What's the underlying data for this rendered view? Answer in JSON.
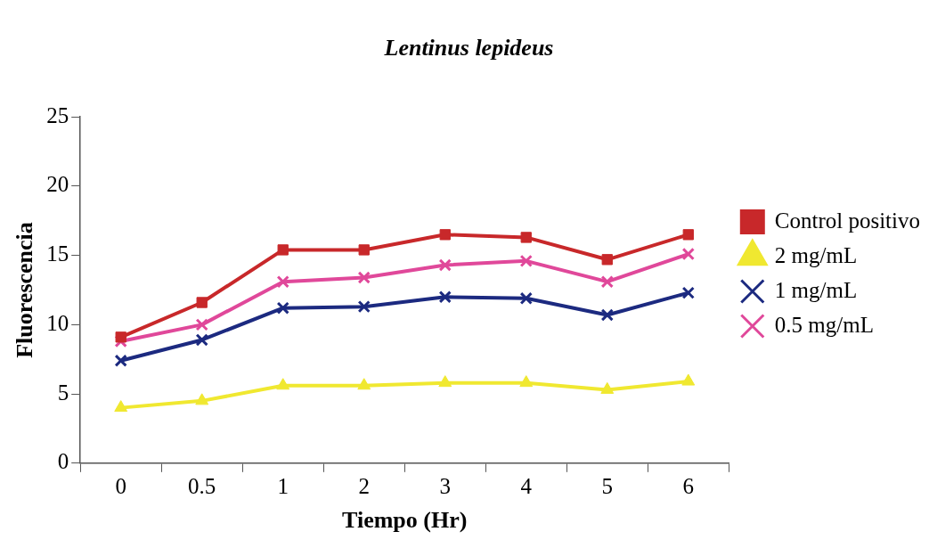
{
  "chart_data": {
    "type": "line",
    "title": "Lentinus lepideus",
    "xlabel": "Tiempo (Hr)",
    "ylabel": "Fluorescencia",
    "categories": [
      "0",
      "0.5",
      "1",
      "2",
      "3",
      "4",
      "5",
      "6"
    ],
    "series": [
      {
        "name": "Control positivo",
        "color": "#c8282a",
        "marker": "square",
        "values": [
          9.1,
          11.6,
          15.4,
          15.4,
          16.5,
          16.3,
          14.7,
          16.5
        ]
      },
      {
        "name": "2 mg/mL",
        "color": "#f0e830",
        "marker": "triangle",
        "values": [
          4.0,
          4.5,
          5.6,
          5.6,
          5.8,
          5.8,
          5.3,
          5.9
        ]
      },
      {
        "name": "1 mg/mL",
        "color": "#1c2a80",
        "marker": "cross",
        "values": [
          7.4,
          8.9,
          11.2,
          11.3,
          12.0,
          11.9,
          10.7,
          12.3
        ]
      },
      {
        "name": "0.5 mg/mL",
        "color": "#e0489a",
        "marker": "cross",
        "values": [
          8.8,
          10.0,
          13.1,
          13.4,
          14.3,
          14.6,
          13.1,
          15.1
        ]
      }
    ],
    "ylim": [
      0,
      25
    ],
    "yticks": [
      0,
      5,
      10,
      15,
      20,
      25
    ],
    "grid": false,
    "legend": "right",
    "line_style": "solid"
  }
}
